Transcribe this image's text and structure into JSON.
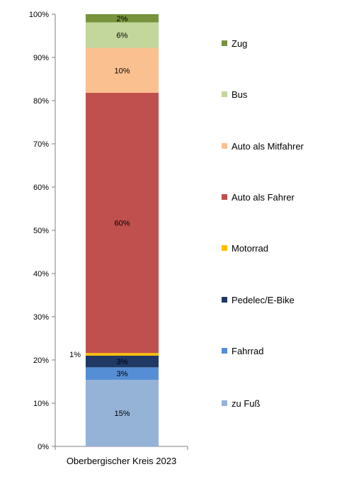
{
  "chart_data": {
    "type": "bar",
    "stacked": true,
    "orientation": "vertical",
    "categories": [
      "Oberbergischer Kreis 2023"
    ],
    "y_ticks": [
      "0%",
      "10%",
      "20%",
      "30%",
      "40%",
      "50%",
      "60%",
      "70%",
      "80%",
      "90%",
      "100%"
    ],
    "ylim": [
      0,
      100
    ],
    "grid": false,
    "legend_position": "right",
    "series": [
      {
        "name": "zu Fuß",
        "values": [
          15.4
        ],
        "label": "15%",
        "color": "#95b3d7"
      },
      {
        "name": "Fahrrad",
        "values": [
          2.9
        ],
        "label": "3%",
        "color": "#558ed5"
      },
      {
        "name": "Pedelec/E-Bike",
        "values": [
          2.7
        ],
        "label": "3%",
        "color": "#1f3864"
      },
      {
        "name": "Motorrad",
        "values": [
          0.6
        ],
        "label": "1%",
        "color": "#ffc000"
      },
      {
        "name": "Auto als Fahrer",
        "values": [
          60.2
        ],
        "label": "60%",
        "color": "#c0504d"
      },
      {
        "name": "Auto als Mitfahrer",
        "values": [
          10.4
        ],
        "label": "10%",
        "color": "#fac090"
      },
      {
        "name": "Bus",
        "values": [
          5.9
        ],
        "label": "6%",
        "color": "#c3d69b"
      },
      {
        "name": "Zug",
        "values": [
          1.9
        ],
        "label": "2%",
        "color": "#77933c"
      }
    ]
  }
}
